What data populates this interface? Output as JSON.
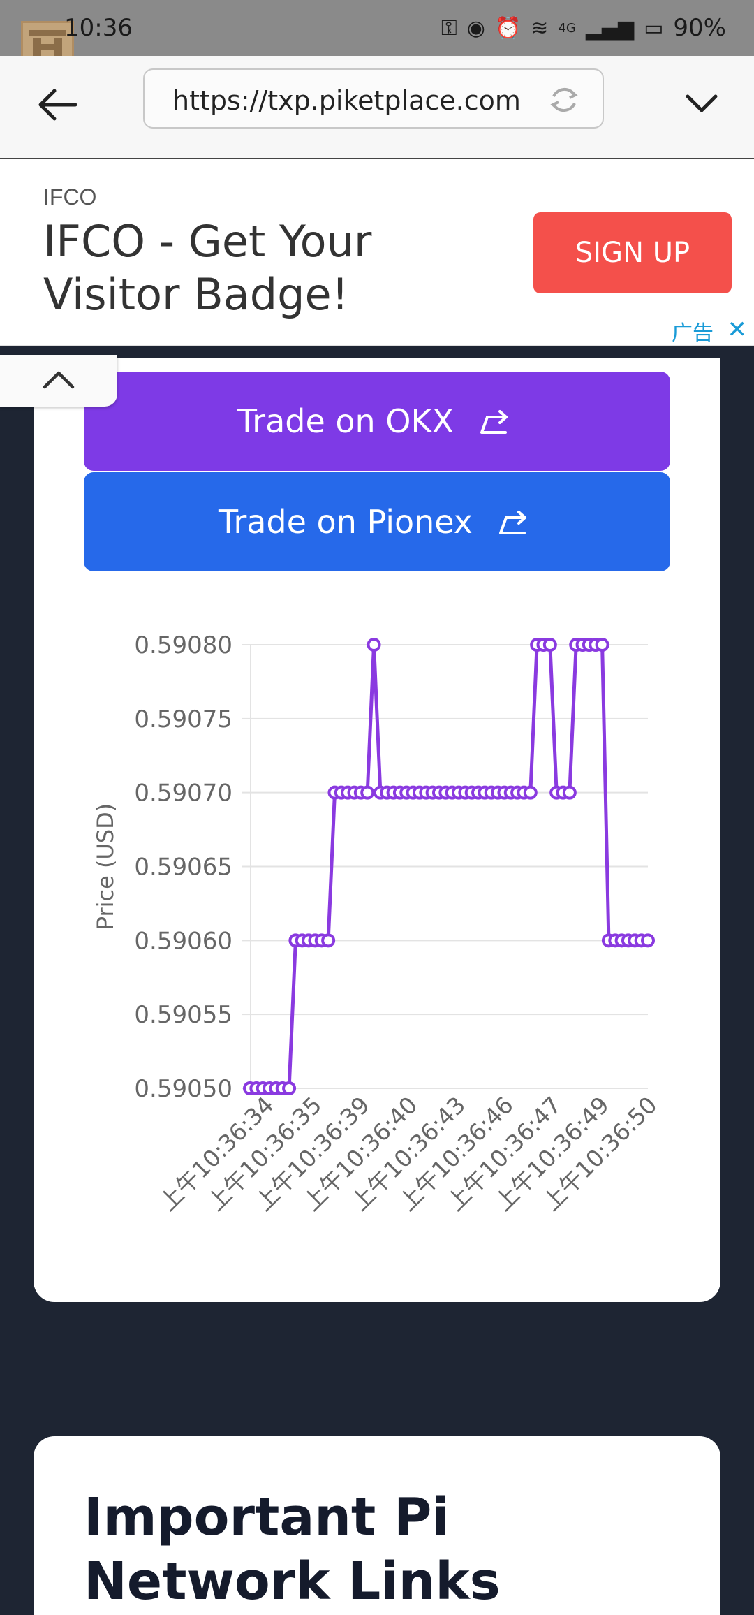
{
  "status_bar": {
    "time": "10:36",
    "battery": "90%",
    "network": "4G"
  },
  "browser": {
    "url": "https://txp.piketplace.com"
  },
  "ad": {
    "brand": "IFCO",
    "headline": "IFCO - Get Your Visitor Badge!",
    "cta": "SIGN UP",
    "ad_label": "广告"
  },
  "trade_buttons": {
    "okx": "Trade on OKX",
    "pionex": "Trade on Pionex"
  },
  "chart_data": {
    "type": "line",
    "ylabel": "Price (USD)",
    "ylim": [
      0.5905,
      0.5908
    ],
    "y_ticks": [
      "0.59050",
      "0.59055",
      "0.59060",
      "0.59065",
      "0.59070",
      "0.59075",
      "0.59080"
    ],
    "x_tick_labels": [
      "上午10:36:34",
      "上午10:36:35",
      "上午10:36:39",
      "上午10:36:40",
      "上午10:36:43",
      "上午10:36:46",
      "上午10:36:47",
      "上午10:36:49",
      "上午10:36:50"
    ],
    "line_color": "#8a3ae0",
    "grid": true,
    "series": [
      {
        "values": [
          0.5905,
          0.5905,
          0.5905,
          0.5905,
          0.5905,
          0.5905,
          0.5905,
          0.5906,
          0.5906,
          0.5906,
          0.5906,
          0.5906,
          0.5906,
          0.5907,
          0.5907,
          0.5907,
          0.5907,
          0.5907,
          0.5907,
          0.5908,
          0.5907,
          0.5907,
          0.5907,
          0.5907,
          0.5907,
          0.5907,
          0.5907,
          0.5907,
          0.5907,
          0.5907,
          0.5907,
          0.5907,
          0.5907,
          0.5907,
          0.5907,
          0.5907,
          0.5907,
          0.5907,
          0.5907,
          0.5907,
          0.5907,
          0.5907,
          0.5907,
          0.5907,
          0.5908,
          0.5908,
          0.5908,
          0.5907,
          0.5907,
          0.5907,
          0.5908,
          0.5908,
          0.5908,
          0.5908,
          0.5908,
          0.5906,
          0.5906,
          0.5906,
          0.5906,
          0.5906,
          0.5906,
          0.5906
        ]
      }
    ]
  },
  "links_card": {
    "title": "Important Pi Network Links"
  }
}
